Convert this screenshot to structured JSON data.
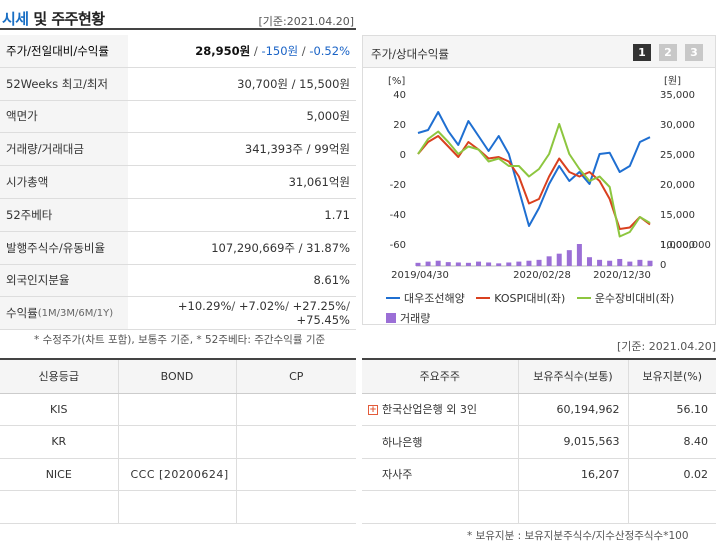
{
  "title": {
    "part1": "시세",
    "part2": " 및 주주현황"
  },
  "basis_date": "[기준:2021.04.20]",
  "price_table": {
    "rows": [
      {
        "label": "주가/전일대비/수익률",
        "price": "28,950원",
        "sep1": " / ",
        "change": "-150원",
        "sep2": " / ",
        "pct": "-0.52%"
      },
      {
        "label": "52Weeks 최고/최저",
        "value": "30,700원 / 15,500원"
      },
      {
        "label": "액면가",
        "value": "5,000원"
      },
      {
        "label": "거래량/거래대금",
        "value": "341,393주 / 99억원"
      },
      {
        "label": "시가총액",
        "value": "31,061억원"
      },
      {
        "label": "52주베타",
        "value": "1.71"
      },
      {
        "label": "발행주식수/유동비율",
        "value": "107,290,669주 / 31.87%"
      },
      {
        "label": "외국인지분율",
        "value": "8.61%"
      },
      {
        "label": "수익률",
        "label_sub": " (1M/3M/6M/1Y)",
        "r1": "+10.29%",
        "r2": "+7.02%",
        "r3": "+27.25%",
        "r4": "+75.45%"
      }
    ],
    "note": "* 수정주가(차트 포함), 보통주 기준, * 52주베타: 주간수익률 기준"
  },
  "chart_panel": {
    "label": "주가/상대수익률",
    "pages": [
      "1",
      "2",
      "3"
    ],
    "active_page": "1"
  },
  "chart_data": {
    "type": "line",
    "y_left_unit": "[%]",
    "y_right_unit": "[원]",
    "y_left_ticks": [
      "40",
      "20",
      "0",
      "-20",
      "-40",
      "-60"
    ],
    "y_left_range": [
      -60,
      40
    ],
    "y_right_ticks": [
      "35,000",
      "30,000",
      "25,000",
      "20,000",
      "15,000",
      "10,000"
    ],
    "y_right_range": [
      10000,
      35000
    ],
    "volume_ticks": [
      "1,000,000",
      "0"
    ],
    "x_tick_labels": [
      "2019/04/30",
      "2020/02/28",
      "2020/12/30"
    ],
    "series": [
      {
        "name": "대우조선해양",
        "color": "#1f6fd1",
        "axis": "right",
        "values": [
          28500,
          29000,
          32000,
          28800,
          26500,
          30500,
          28000,
          25500,
          28000,
          25000,
          19000,
          13000,
          16000,
          20000,
          23000,
          20500,
          22000,
          20000,
          25000,
          25200,
          22000,
          23000,
          27000,
          27800
        ]
      },
      {
        "name": "KOSPI대비(좌)",
        "color": "#d9401f",
        "axis": "left",
        "values": [
          0,
          8,
          12,
          5,
          -2,
          8,
          3,
          -3,
          -2,
          -5,
          -15,
          -33,
          -30,
          -15,
          -3,
          -12,
          -15,
          -12,
          -18,
          -30,
          -50,
          -49,
          -42,
          -47
        ]
      },
      {
        "name": "운수장비대비(좌)",
        "color": "#8dc63f",
        "axis": "left",
        "values": [
          0,
          10,
          15,
          8,
          0,
          5,
          3,
          -5,
          -3,
          -8,
          -8,
          -15,
          -10,
          0,
          20,
          0,
          -10,
          -18,
          -15,
          -22,
          -55,
          -52,
          -42,
          -46
        ]
      },
      {
        "name": "거래량",
        "color": "#9b6fd6",
        "type": "bar",
        "values": [
          180000,
          250000,
          300000,
          220000,
          200000,
          180000,
          250000,
          200000,
          150000,
          200000,
          250000,
          300000,
          350000,
          550000,
          700000,
          900000,
          1250000,
          500000,
          350000,
          300000,
          400000,
          250000,
          350000,
          300000
        ]
      }
    ]
  },
  "basis_date2": "[기준: 2021.04.20]",
  "credit_table": {
    "headers": [
      "신용등급",
      "BOND",
      "CP"
    ],
    "rows": [
      {
        "agency": "KIS",
        "bond": "",
        "cp": ""
      },
      {
        "agency": "KR",
        "bond": "",
        "cp": ""
      },
      {
        "agency": "NICE",
        "bond": "CCC  [20200624]",
        "cp": ""
      },
      {
        "agency": "",
        "bond": "",
        "cp": ""
      }
    ]
  },
  "holders_table": {
    "headers": [
      "주요주주",
      "보유주식수(보통)",
      "보유지분(%)"
    ],
    "rows": [
      {
        "name": "한국산업은행 외 3인",
        "shares": "60,194,962",
        "pct": "56.10",
        "expandable": true
      },
      {
        "name": "하나은행",
        "shares": "9,015,563",
        "pct": "8.40",
        "expandable": false
      },
      {
        "name": "자사주",
        "shares": "16,207",
        "pct": "0.02",
        "expandable": false
      },
      {
        "name": "",
        "shares": "",
        "pct": "",
        "expandable": false
      }
    ],
    "note": "* 보유지분 : 보유지분주식수/지수산정주식수*100"
  }
}
